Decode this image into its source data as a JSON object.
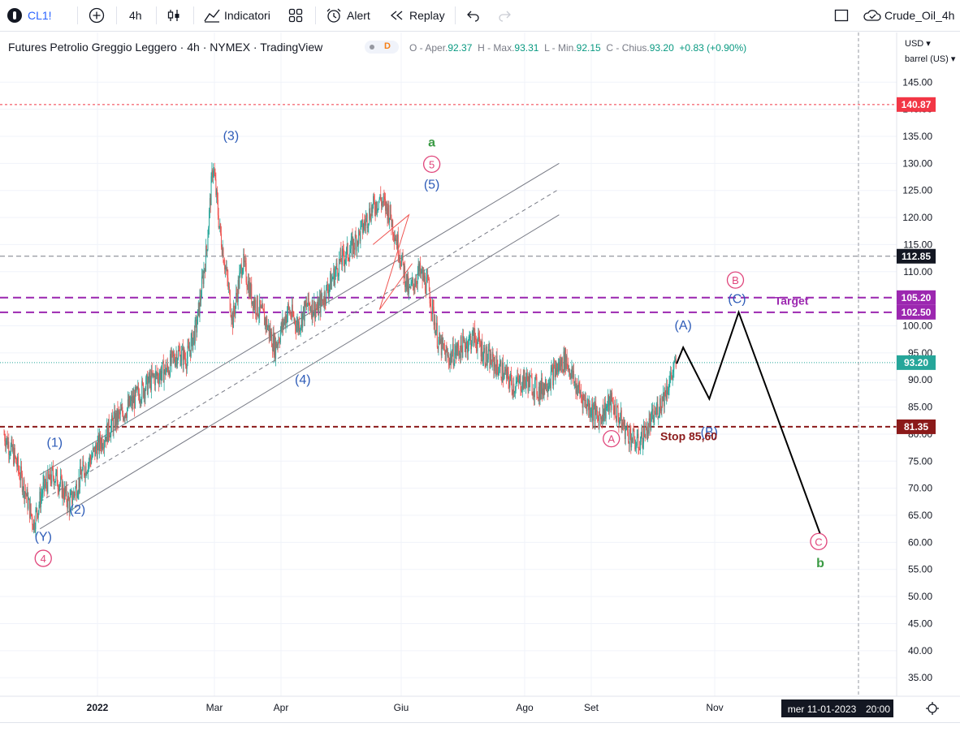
{
  "toolbar": {
    "symbol": "CL1!",
    "interval": "4h",
    "indicators_label": "Indicatori",
    "alert_label": "Alert",
    "replay_label": "Replay",
    "layout_name": "Crude_Oil_4h"
  },
  "legend": {
    "title": "Futures Petrolio Greggio Leggero · 4h · NYMEX · TradingView",
    "badge": "D",
    "o_label": "O - Aper.",
    "o_value": "92.37",
    "h_label": "H - Max.",
    "h_value": "93.31",
    "l_label": "L - Min.",
    "l_value": "92.15",
    "c_label": "C - Chius.",
    "c_value": "93.20",
    "change": "+0.83 (+0.90%)"
  },
  "axis": {
    "currency": "USD ▾",
    "unit": "barrel (US) ▾",
    "date_readout": "mer 11-01-2023",
    "time_readout": "20:00"
  },
  "colors": {
    "up": "#26a69a",
    "down": "#ef5350",
    "wave_blue": "#2e5cb8",
    "wave_pink": "#e0457b",
    "wave_green": "#3a9a44",
    "target_purple": "#9c27b0",
    "stop_red": "#8b1a1a"
  },
  "chart_data": {
    "type": "candlestick",
    "interval": "4h",
    "symbol": "CL1!",
    "ylim": [
      31,
      151
    ],
    "y_ticks": [
      35,
      40,
      45,
      50,
      55,
      60,
      65,
      70,
      75,
      80,
      85,
      90,
      95,
      100,
      105,
      110,
      115,
      120,
      125,
      130,
      135,
      140,
      145
    ],
    "x_ticks": [
      "2022",
      "Mar",
      "Apr",
      "Giu",
      "Ago",
      "Set",
      "Nov"
    ],
    "price_path": [
      [
        0.0,
        80.0
      ],
      [
        0.3,
        76.0
      ],
      [
        0.6,
        70.5
      ],
      [
        0.9,
        63.5
      ],
      [
        1.2,
        70.0
      ],
      [
        1.5,
        72.5
      ],
      [
        1.7,
        71.0
      ],
      [
        2.0,
        67.0
      ],
      [
        2.4,
        73.0
      ],
      [
        2.7,
        76.0
      ],
      [
        3.0,
        79.0
      ],
      [
        3.4,
        82.5
      ],
      [
        3.8,
        85.0
      ],
      [
        4.2,
        88.0
      ],
      [
        4.6,
        90.5
      ],
      [
        5.0,
        92.0
      ],
      [
        5.3,
        95.0
      ],
      [
        5.6,
        94.0
      ],
      [
        5.9,
        100.0
      ],
      [
        6.2,
        114.0
      ],
      [
        6.4,
        130.0
      ],
      [
        6.6,
        118.0
      ],
      [
        6.8,
        110.0
      ],
      [
        7.0,
        101.0
      ],
      [
        7.3,
        112.0
      ],
      [
        7.6,
        105.0
      ],
      [
        8.0,
        101.0
      ],
      [
        8.3,
        96.0
      ],
      [
        8.7,
        103.0
      ],
      [
        9.0,
        100.0
      ],
      [
        9.3,
        104.0
      ],
      [
        9.6,
        103.0
      ],
      [
        10.0,
        108.0
      ],
      [
        10.3,
        112.0
      ],
      [
        10.6,
        114.0
      ],
      [
        10.9,
        117.0
      ],
      [
        11.2,
        121.0
      ],
      [
        11.5,
        123.5
      ],
      [
        11.8,
        121.0
      ],
      [
        12.1,
        114.0
      ],
      [
        12.4,
        106.0
      ],
      [
        12.7,
        110.0
      ],
      [
        13.0,
        107.0
      ],
      [
        13.3,
        97.0
      ],
      [
        13.6,
        94.0
      ],
      [
        14.0,
        96.0
      ],
      [
        14.4,
        98.0
      ],
      [
        14.8,
        94.0
      ],
      [
        15.2,
        92.0
      ],
      [
        15.6,
        89.0
      ],
      [
        16.0,
        90.0
      ],
      [
        16.4,
        88.0
      ],
      [
        16.8,
        91.0
      ],
      [
        17.2,
        94.0
      ],
      [
        17.5,
        89.0
      ],
      [
        17.8,
        86.0
      ],
      [
        18.2,
        83.0
      ],
      [
        18.6,
        86.0
      ],
      [
        19.0,
        81.0
      ],
      [
        19.4,
        78.0
      ],
      [
        19.8,
        82.0
      ],
      [
        20.2,
        87.0
      ],
      [
        20.6,
        93.2
      ]
    ],
    "horizontal_lines": [
      {
        "label": "140.87",
        "value": 140.87,
        "style": "dotted",
        "color": "#f23645"
      },
      {
        "label": "112.85",
        "value": 112.85,
        "style": "dashed",
        "color": "#787b86"
      },
      {
        "label": "105.20",
        "value": 105.2,
        "style": "dashed",
        "color": "#9c27b0"
      },
      {
        "label": "102.50",
        "value": 102.5,
        "style": "dashed",
        "color": "#9c27b0"
      },
      {
        "label": "81.35",
        "value": 81.35,
        "style": "dashed",
        "color": "#8b1a1a"
      }
    ],
    "current_price": {
      "label": "93.20",
      "value": 93.2
    },
    "channel": {
      "upper": [
        [
          1.1,
          72.5
        ],
        [
          17.0,
          130.0
        ]
      ],
      "lower": [
        [
          1.1,
          62.5
        ],
        [
          17.0,
          120.5
        ]
      ]
    },
    "projection": [
      [
        20.6,
        93.0
      ],
      [
        20.8,
        96.0
      ],
      [
        21.6,
        86.5
      ],
      [
        22.5,
        102.5
      ],
      [
        25.0,
        61.5
      ]
    ],
    "wave_labels": [
      {
        "text": "(1)",
        "x": 1.55,
        "y": 77.7,
        "color": "blue"
      },
      {
        "text": "(2)",
        "x": 2.25,
        "y": 65.3,
        "color": "blue"
      },
      {
        "text": "(3)",
        "x": 6.95,
        "y": 134.3,
        "color": "blue"
      },
      {
        "text": "(4)",
        "x": 9.15,
        "y": 89.3,
        "color": "blue"
      },
      {
        "text": "(5)",
        "x": 13.1,
        "y": 125.3,
        "color": "blue"
      },
      {
        "text": "(Y)",
        "x": 1.2,
        "y": 60.3,
        "color": "blue"
      },
      {
        "text": "(A)",
        "x": 20.8,
        "y": 99.3,
        "color": "blue"
      },
      {
        "text": "(B)",
        "x": 21.6,
        "y": 79.6,
        "color": "blue"
      },
      {
        "text": "(C)",
        "x": 22.45,
        "y": 104.2,
        "color": "blue"
      },
      {
        "text": "4",
        "x": 1.2,
        "y": 56.3,
        "color": "pink",
        "circled": true
      },
      {
        "text": "5",
        "x": 13.1,
        "y": 129.1,
        "color": "pink",
        "circled": true
      },
      {
        "text": "A",
        "x": 18.6,
        "y": 78.4,
        "color": "pink",
        "circled": true
      },
      {
        "text": "B",
        "x": 22.4,
        "y": 107.7,
        "color": "pink",
        "circled": true
      },
      {
        "text": "C",
        "x": 24.95,
        "y": 59.4,
        "color": "pink",
        "circled": true
      },
      {
        "text": "a",
        "x": 13.1,
        "y": 133.1,
        "color": "green"
      },
      {
        "text": "b",
        "x": 25.0,
        "y": 55.4,
        "color": "green"
      }
    ],
    "annotations": [
      {
        "text": "Target",
        "x": 23.6,
        "y": 103.9
      },
      {
        "text": "Stop 85,60",
        "x": 20.1,
        "y": 78.9
      }
    ]
  }
}
